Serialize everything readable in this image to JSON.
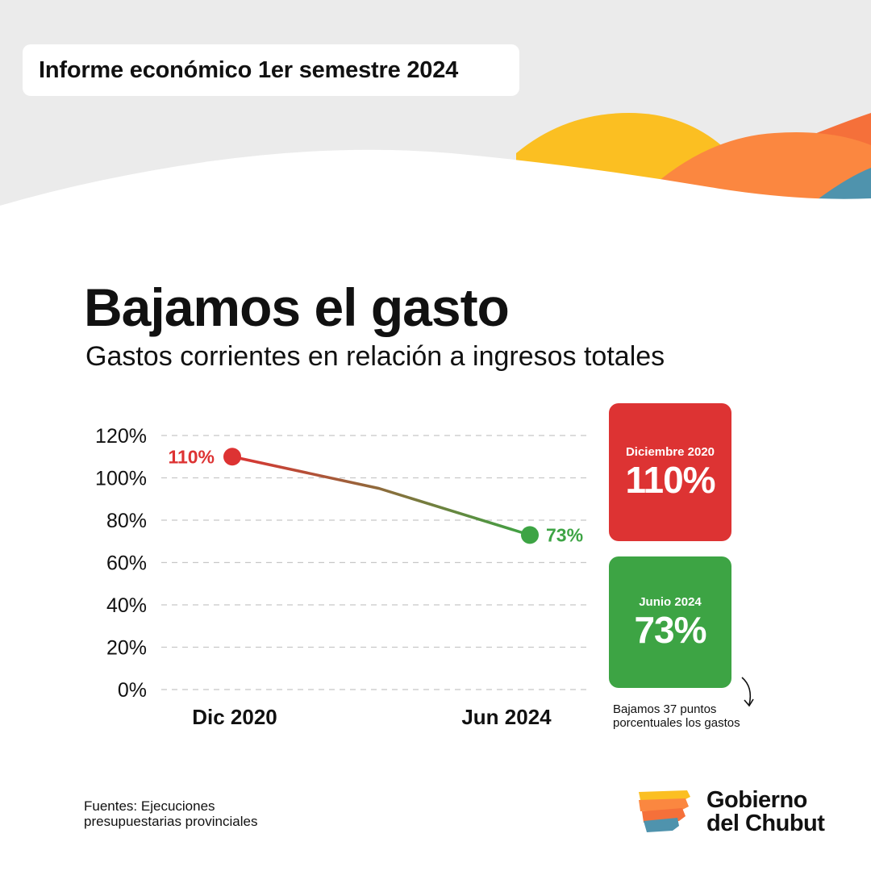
{
  "header": {
    "report_label": "Informe económico 1er semestre 2024"
  },
  "title": "Bajamos el gasto",
  "subtitle": "Gastos corrientes en relación a ingresos totales",
  "colors": {
    "red": "#dd3333",
    "green": "#3da444",
    "yellow": "#fbbf22",
    "orange": "#fb8740",
    "teal": "#4f93ad",
    "grey_bg": "#ebebeb"
  },
  "chart_data": {
    "type": "line",
    "title": "",
    "x": [
      "Dic 2020",
      "",
      "Jun 2024"
    ],
    "x_tick_labels": [
      "Dic 2020",
      "Jun 2024"
    ],
    "series": [
      {
        "values": [
          110,
          95,
          73
        ]
      }
    ],
    "y_tick_labels": [
      "120%",
      "100%",
      "80%",
      "60%",
      "40%",
      "20%",
      "0%"
    ],
    "ylim": [
      0,
      120
    ],
    "grid": true,
    "data_labels": [
      "110%",
      "73%"
    ]
  },
  "cards": [
    {
      "label": "Diciembre 2020",
      "value": "110%",
      "color": "red"
    },
    {
      "label": "Junio 2024",
      "value": "73%",
      "color": "green"
    }
  ],
  "note": {
    "line1": "Bajamos 37 puntos",
    "line2": "porcentuales los gastos"
  },
  "source": {
    "line1": "Fuentes: Ejecuciones",
    "line2": "presupuestarias provinciales"
  },
  "logo": {
    "line1": "Gobierno",
    "line2": "del Chubut"
  }
}
